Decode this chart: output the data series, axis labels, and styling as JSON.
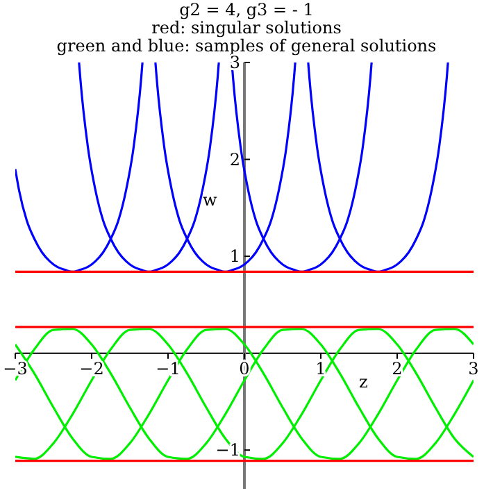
{
  "chart_data": {
    "type": "line",
    "title": "g2 = 4, g3 = - 1",
    "subtitle": "red: singular solutions\ngreen and blue: samples of general solutions",
    "xlabel": "z",
    "ylabel": "w",
    "xlim": [
      -3,
      3
    ],
    "ylim": [
      -1.4,
      3
    ],
    "xticks": [
      {
        "value": -3,
        "label": "−3"
      },
      {
        "value": -2,
        "label": "−2"
      },
      {
        "value": -1,
        "label": "−1"
      },
      0,
      1,
      2,
      3
    ],
    "yticks": [
      {
        "value": -1,
        "label": "−1"
      },
      1,
      2,
      3
    ],
    "grid": false,
    "marker": "none",
    "line_style": "solid",
    "series": [
      {
        "color": "#0000ff",
        "x": [
          -3,
          -2.95,
          -2.85,
          -2.75,
          -2.65,
          -2.55,
          -2.45,
          -2.35,
          -2.25,
          -2.15,
          -2.05,
          -1.95,
          -1.85,
          -1.75,
          -1.65,
          -1.55,
          -1.45,
          -1.35,
          -1.335,
          -0.75,
          -0.165,
          -0.15,
          -0.05,
          0.05,
          0.15,
          0.25,
          0.35,
          0.45,
          0.55,
          0.65,
          0.75,
          0.85,
          0.95,
          1.05,
          1.15,
          1.25,
          1.35,
          1.45,
          1.55,
          1.65,
          1.665
        ],
        "values": [
          1.9,
          1.68,
          1.37,
          1.18,
          1.04,
          0.95,
          0.89,
          0.86,
          0.84,
          0.86,
          0.89,
          0.95,
          1.04,
          1.18,
          1.37,
          1.68,
          2.13,
          2.85,
          3,
          null,
          3,
          2.85,
          2.13,
          1.68,
          1.37,
          1.18,
          1.04,
          0.95,
          0.89,
          0.86,
          0.84,
          0.86,
          0.89,
          0.95,
          1.04,
          1.18,
          1.37,
          1.68,
          2.13,
          2.85,
          3
        ]
      },
      {
        "color": "#0000ff",
        "x": [
          -2.165,
          -2.15,
          -2.05,
          -1.95,
          -1.85,
          -1.75,
          -1.65,
          -1.55,
          -1.45,
          -1.35,
          -1.25,
          -1.15,
          -1.05,
          -0.95,
          -0.85,
          -0.75,
          -0.65,
          -0.55,
          -0.45,
          -0.35,
          -0.335,
          0.25,
          0.835,
          0.85,
          0.95,
          1.05,
          1.15,
          1.25,
          1.35,
          1.45,
          1.55,
          1.65,
          1.75,
          1.85,
          1.95,
          2.05,
          2.15,
          2.25,
          2.35,
          2.45,
          2.55,
          2.65,
          2.665
        ],
        "values": [
          3,
          2.85,
          2.13,
          1.68,
          1.37,
          1.18,
          1.04,
          0.95,
          0.89,
          0.86,
          0.84,
          0.86,
          0.89,
          0.95,
          1.04,
          1.18,
          1.37,
          1.68,
          2.13,
          2.85,
          3,
          null,
          3,
          2.85,
          2.13,
          1.68,
          1.37,
          1.18,
          1.04,
          0.95,
          0.89,
          0.86,
          0.84,
          0.86,
          0.89,
          0.95,
          1.04,
          1.18,
          1.37,
          1.68,
          2.13,
          2.85,
          3
        ]
      },
      {
        "color": "#0000ff",
        "x": [
          -1.165,
          -1.15,
          -1.05,
          -0.95,
          -0.85,
          -0.75,
          -0.65,
          -0.55,
          -0.45,
          -0.35,
          -0.25,
          -0.15,
          -0.05,
          0.05,
          0.15,
          0.25,
          0.35,
          0.45,
          0.55,
          0.65,
          0.665
        ],
        "values": [
          3,
          2.85,
          2.13,
          1.68,
          1.37,
          1.18,
          1.04,
          0.95,
          0.89,
          0.86,
          0.84,
          0.86,
          0.89,
          0.95,
          1.04,
          1.18,
          1.37,
          1.68,
          2.13,
          2.85,
          3
        ]
      },
      {
        "color": "#00ee00",
        "x": [
          -3,
          -2.75,
          -2.5,
          -2.25,
          -2,
          -1.75,
          -1.5,
          -1.25,
          -1,
          -0.75,
          -0.5,
          -0.25,
          0,
          0.25,
          0.5,
          0.75,
          1,
          1.25,
          1.5,
          1.75,
          2,
          2.25,
          2.5,
          2.75,
          3
        ],
        "values": [
          -0.28,
          0.04,
          0.24,
          0.25,
          0.09,
          -0.21,
          -0.56,
          -0.88,
          -1.07,
          -1.09,
          -0.93,
          -0.63,
          -0.28,
          0.04,
          0.24,
          0.25,
          0.09,
          -0.21,
          -0.56,
          -0.88,
          -1.07,
          -1.09,
          -0.93,
          -0.63,
          -0.28
        ]
      },
      {
        "color": "#00ee00",
        "x": [
          -3,
          -2.75,
          -2.5,
          -2.25,
          -2,
          -1.75,
          -1.5,
          -1.25,
          -1,
          -0.75,
          -0.5,
          -0.25,
          0,
          0.25,
          0.5,
          0.75,
          1,
          1.25,
          1.5,
          1.75,
          2,
          2.25,
          2.5,
          2.75,
          3
        ],
        "values": [
          -1.07,
          -1.09,
          -0.93,
          -0.63,
          -0.28,
          0.04,
          0.24,
          0.25,
          0.09,
          -0.21,
          -0.56,
          -0.88,
          -1.07,
          -1.09,
          -0.93,
          -0.63,
          -0.28,
          0.04,
          0.24,
          0.25,
          0.09,
          -0.21,
          -0.56,
          -0.88,
          -1.07
        ]
      },
      {
        "color": "#00ee00",
        "x": [
          -3,
          -2.75,
          -2.5,
          -2.25,
          -2,
          -1.75,
          -1.5,
          -1.25,
          -1,
          -0.75,
          -0.5,
          -0.25,
          0,
          0.25,
          0.5,
          0.75,
          1,
          1.25,
          1.5,
          1.75,
          2,
          2.25,
          2.5,
          2.75,
          3
        ],
        "values": [
          0.09,
          -0.21,
          -0.56,
          -0.88,
          -1.07,
          -1.09,
          -0.93,
          -0.63,
          -0.28,
          0.04,
          0.24,
          0.25,
          0.09,
          -0.21,
          -0.56,
          -0.88,
          -1.07,
          -1.09,
          -0.93,
          -0.63,
          -0.28,
          0.04,
          0.24,
          0.25,
          0.09
        ]
      },
      {
        "color": "#ff0000",
        "x": [
          -3,
          3
        ],
        "values": [
          0.84,
          0.84
        ]
      },
      {
        "color": "#ff0000",
        "x": [
          -3,
          3
        ],
        "values": [
          0.27,
          0.27
        ]
      },
      {
        "color": "#ff0000",
        "x": [
          -3,
          3
        ],
        "values": [
          -1.11,
          -1.11
        ]
      }
    ]
  }
}
